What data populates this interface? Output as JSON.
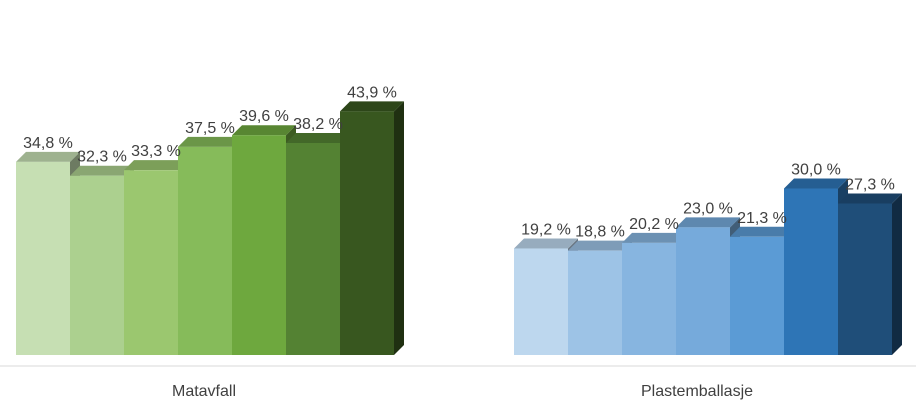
{
  "chart_data": {
    "type": "bar",
    "categories": [
      "Matavfall",
      "Plastemballasje"
    ],
    "groups": [
      {
        "category": "Matavfall",
        "values": [
          34.8,
          32.3,
          33.3,
          37.5,
          39.6,
          38.2,
          43.9
        ],
        "labels": [
          "34,8 %",
          "32,3 %",
          "33,3 %",
          "37,5 %",
          "39,6 %",
          "38,2 %",
          "43,9 %"
        ],
        "colors": [
          "#c6dfb3",
          "#acd08f",
          "#9bc76f",
          "#86bb5a",
          "#6ea83e",
          "#548233",
          "#38571f"
        ]
      },
      {
        "category": "Plastemballasje",
        "values": [
          19.2,
          18.8,
          20.2,
          23.0,
          21.3,
          30.0,
          27.3
        ],
        "labels": [
          "19,2 %",
          "18,8 %",
          "20,2 %",
          "23,0 %",
          "21,3 %",
          "30,0 %",
          "27,3 %"
        ],
        "colors": [
          "#bdd7ee",
          "#9dc3e6",
          "#87b5e0",
          "#76aadb",
          "#5b9bd5",
          "#2e75b6",
          "#1f4e79"
        ]
      }
    ],
    "ylim": [
      0,
      50
    ],
    "grid": false,
    "legend": "none",
    "bar_style": "3d"
  }
}
